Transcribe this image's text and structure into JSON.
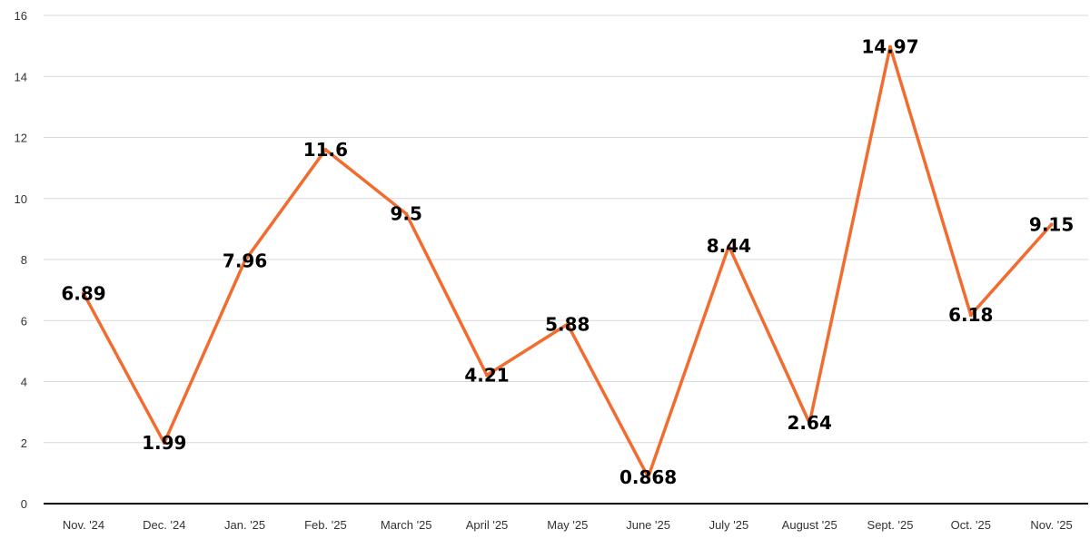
{
  "chart_data": {
    "type": "line",
    "title": "",
    "xlabel": "",
    "ylabel": "",
    "categories": [
      "Nov. '24",
      "Dec. '24",
      "Jan. '25",
      "Feb. '25",
      "March '25",
      "April '25",
      "May '25",
      "June '25",
      "July '25",
      "August '25",
      "Sept. '25",
      "Oct. '25",
      "Nov. '25"
    ],
    "series": [
      {
        "values": [
          6.89,
          1.99,
          7.96,
          11.6,
          9.5,
          4.21,
          5.88,
          0.868,
          8.44,
          2.64,
          14.97,
          6.18,
          9.15
        ],
        "labels": [
          "6.89",
          "1.99",
          "7.96",
          "11.6",
          "9.5",
          "4.21",
          "5.88",
          "0.868",
          "8.44",
          "2.64",
          "14.97",
          "6.18",
          "9.15"
        ],
        "color": "#f26b2f"
      }
    ],
    "ylim": [
      0,
      16
    ],
    "yticks": [
      "0",
      "2",
      "4",
      "6",
      "8",
      "10",
      "12",
      "14",
      "16"
    ],
    "grid": true,
    "legend": "none"
  }
}
